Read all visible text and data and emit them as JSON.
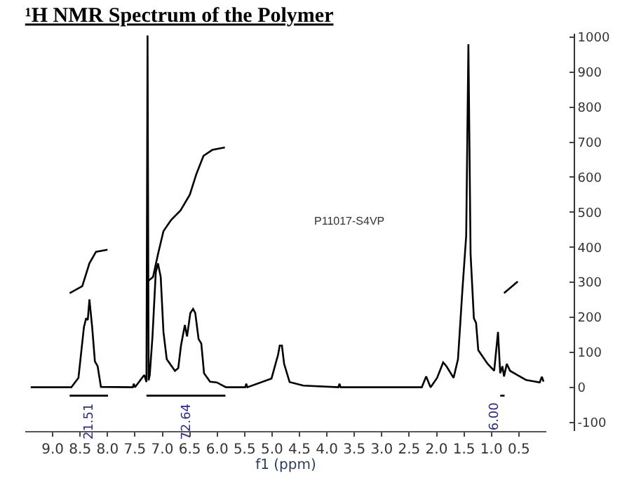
{
  "chart_data": {
    "type": "line",
    "title": "¹H NMR Spectrum of the Polymer",
    "xlabel": "f1 (ppm)",
    "xlim": [
      9.5,
      0.0
    ],
    "xticks": [
      {
        "value": 9.0,
        "label": "9.0"
      },
      {
        "value": 8.5,
        "label": "8.5"
      },
      {
        "value": 8.0,
        "label": "8.0"
      },
      {
        "value": 7.5,
        "label": "7.5"
      },
      {
        "value": 7.0,
        "label": "7.0"
      },
      {
        "value": 6.5,
        "label": "6.5"
      },
      {
        "value": 6.0,
        "label": "6.0"
      },
      {
        "value": 5.5,
        "label": "5.5"
      },
      {
        "value": 5.0,
        "label": "5.0"
      },
      {
        "value": 4.5,
        "label": "4.5"
      },
      {
        "value": 4.0,
        "label": "4.0"
      },
      {
        "value": 3.5,
        "label": "3.5"
      },
      {
        "value": 3.0,
        "label": "3.0"
      },
      {
        "value": 2.5,
        "label": "2.5"
      },
      {
        "value": 2.0,
        "label": "2.0"
      },
      {
        "value": 1.5,
        "label": "1.5"
      },
      {
        "value": 1.0,
        "label": "1.0"
      },
      {
        "value": 0.5,
        "label": "0.5"
      }
    ],
    "ylim": [
      -125,
      1010
    ],
    "yticks": [
      -100,
      0,
      100,
      200,
      300,
      400,
      500,
      600,
      700,
      800,
      900,
      1000
    ],
    "marker": "none",
    "line_style": "solid",
    "series": [
      {
        "color": "#000000",
        "x": [
          9.4,
          8.66,
          8.53,
          8.43,
          8.39,
          8.36,
          8.33,
          8.28,
          8.23,
          8.18,
          8.12,
          7.54,
          7.52,
          7.5,
          7.37,
          7.33,
          7.29,
          7.27,
          7.25,
          7.23,
          7.18,
          7.12,
          7.08,
          7.03,
          6.98,
          6.92,
          6.77,
          6.71,
          6.66,
          6.59,
          6.55,
          6.49,
          6.44,
          6.4,
          6.34,
          6.29,
          6.24,
          6.13,
          6.01,
          5.84,
          5.49,
          5.47,
          5.45,
          5.01,
          4.89,
          4.86,
          4.82,
          4.78,
          4.68,
          4.43,
          3.79,
          3.77,
          3.75,
          2.27,
          2.19,
          2.11,
          1.99,
          1.88,
          1.82,
          1.69,
          1.61,
          1.53,
          1.46,
          1.42,
          1.38,
          1.32,
          1.28,
          1.24,
          1.07,
          0.95,
          0.88,
          0.84,
          0.8,
          0.77,
          0.72,
          0.66,
          0.53,
          0.37,
          0.12,
          0.08,
          0.05
        ],
        "values": [
          0,
          0,
          27,
          172,
          197,
          192,
          251,
          172,
          74,
          60,
          1,
          0,
          10,
          0,
          27,
          35,
          15,
          1005,
          20,
          35,
          145,
          329,
          354,
          315,
          158,
          80,
          47,
          55,
          119,
          178,
          145,
          212,
          224,
          212,
          138,
          125,
          40,
          16,
          14,
          0,
          0,
          10,
          0,
          25,
          93,
          119,
          119,
          67,
          15,
          5,
          0,
          10,
          0,
          0,
          31,
          0,
          27,
          71,
          60,
          27,
          80,
          276,
          433,
          980,
          380,
          197,
          184,
          106,
          67,
          47,
          158,
          40,
          60,
          31,
          67,
          47,
          35,
          21,
          14,
          30,
          16
        ]
      },
      {
        "color": "#000000",
        "x": [
          8.69,
          8.46,
          8.33,
          8.21,
          8.0
        ],
        "values": [
          269,
          289,
          354,
          387,
          393
        ]
      },
      {
        "color": "#000000",
        "x": [
          7.27,
          7.17,
          7.08,
          6.98,
          6.84,
          6.67,
          6.5,
          6.38,
          6.25,
          6.09,
          5.86
        ],
        "values": [
          302,
          315,
          380,
          446,
          478,
          505,
          550,
          609,
          661,
          678,
          685
        ]
      },
      {
        "color": "#000000",
        "x": [
          0.77,
          0.52
        ],
        "values": [
          269,
          302
        ]
      },
      {
        "color": "#000000",
        "x": [
          8.69,
          7.99
        ],
        "values": [
          -24,
          -24
        ]
      },
      {
        "color": "#000000",
        "x": [
          7.29,
          5.85
        ],
        "values": [
          -24,
          -24
        ]
      },
      {
        "color": "#000000",
        "x": [
          0.84,
          0.76
        ],
        "values": [
          -24,
          -24
        ]
      }
    ],
    "annotations": [
      "21.51",
      "72.64",
      "6.00",
      "P11017-S4VP"
    ]
  }
}
